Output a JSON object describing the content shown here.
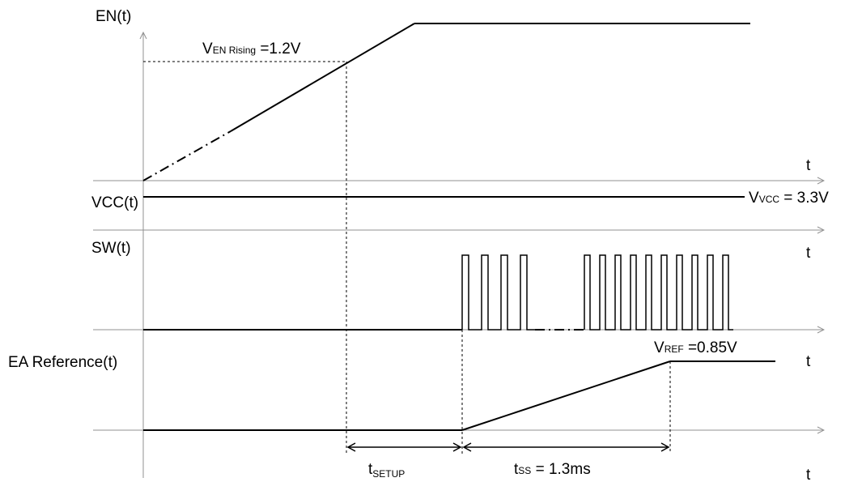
{
  "signals": {
    "en": "EN(t)",
    "vcc": "VCC(t)",
    "sw": "SW(t)",
    "ea": "EA Reference(t)"
  },
  "time_axis_label": "t",
  "annotations": {
    "ven_main": "V",
    "ven_sub": "EN Rising",
    "ven_value": " =1.2V",
    "vvcc_main": "V",
    "vvcc_sub": "VCC",
    "vvcc_value": " = 3.3V",
    "vref_main": "V",
    "vref_sub": "REF",
    "vref_value": " =0.85V",
    "tsetup_main": "t",
    "tsetup_sub": "SETUP",
    "tss_main": "t",
    "tss_sub": "SS",
    "tss_value": " = 1.3ms"
  }
}
